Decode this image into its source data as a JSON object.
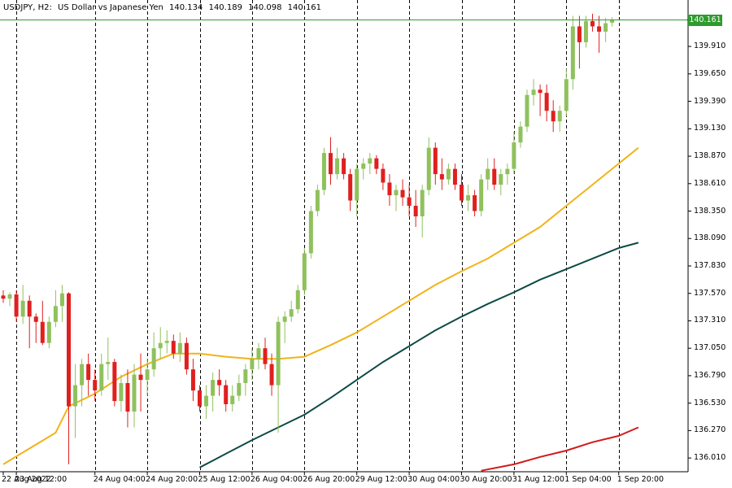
{
  "header": {
    "symbol": "USDJPY, H2:",
    "description": "US Dollar vs Japanese Yen",
    "open": "140.134",
    "high": "140.189",
    "low": "140.098",
    "close": "140.161"
  },
  "current_price_label": "140.161",
  "colors": {
    "bull": "#8fc15d",
    "bear": "#e01f1f",
    "ma_fast": "#f0b419",
    "ma_mid": "#0d4a44",
    "ma_slow": "#d11a1a",
    "price_line": "#2e9b2e",
    "grid_separator": "#000000",
    "axis": "#000000"
  },
  "chart_data": {
    "type": "candlestick",
    "symbol": "USDJPY",
    "timeframe": "H2",
    "ylim": [
      135.88,
      140.35
    ],
    "y_ticks": [
      "136.010",
      "136.270",
      "136.530",
      "136.790",
      "137.050",
      "137.310",
      "137.570",
      "137.830",
      "138.090",
      "138.350",
      "138.610",
      "138.870",
      "139.130",
      "139.390",
      "139.650",
      "139.910"
    ],
    "x_tick_labels": [
      "22 Aug 2022",
      "23 Aug 12:00",
      "24 Aug 04:00",
      "24 Aug 20:00",
      "25 Aug 12:00",
      "26 Aug 04:00",
      "26 Aug 20:00",
      "29 Aug 12:00",
      "30 Aug 04:00",
      "30 Aug 20:00",
      "31 Aug 12:00",
      "1 Sep 04:00",
      "1 Sep 20:00"
    ],
    "last_price": 140.161,
    "grid": false,
    "candles": [
      [
        137.55,
        137.6,
        137.48,
        137.52
      ],
      [
        137.52,
        137.58,
        137.45,
        137.56
      ],
      [
        137.56,
        137.6,
        137.3,
        137.35
      ],
      [
        137.35,
        137.65,
        137.28,
        137.5
      ],
      [
        137.5,
        137.55,
        137.05,
        137.35
      ],
      [
        137.35,
        137.38,
        137.1,
        137.3
      ],
      [
        137.3,
        137.5,
        137.08,
        137.1
      ],
      [
        137.1,
        137.35,
        137.05,
        137.3
      ],
      [
        137.3,
        137.6,
        137.25,
        137.45
      ],
      [
        137.45,
        137.65,
        137.3,
        137.57
      ],
      [
        137.57,
        137.58,
        135.95,
        136.5
      ],
      [
        136.5,
        136.9,
        136.2,
        136.7
      ],
      [
        136.7,
        136.95,
        136.5,
        136.9
      ],
      [
        136.9,
        137.0,
        136.6,
        136.75
      ],
      [
        136.75,
        136.85,
        136.55,
        136.65
      ],
      [
        136.65,
        137.0,
        136.6,
        136.9
      ],
      [
        136.9,
        137.15,
        136.75,
        136.92
      ],
      [
        136.92,
        136.95,
        136.5,
        136.55
      ],
      [
        136.55,
        136.8,
        136.45,
        136.72
      ],
      [
        136.72,
        136.85,
        136.3,
        136.45
      ],
      [
        136.45,
        136.9,
        136.3,
        136.8
      ],
      [
        136.8,
        137.0,
        136.45,
        136.75
      ],
      [
        136.75,
        136.95,
        136.6,
        136.85
      ],
      [
        136.85,
        137.2,
        136.78,
        137.05
      ],
      [
        137.05,
        137.25,
        136.95,
        137.1
      ],
      [
        137.1,
        137.22,
        137.0,
        137.12
      ],
      [
        137.12,
        137.18,
        136.95,
        137.0
      ],
      [
        137.0,
        137.2,
        136.92,
        137.1
      ],
      [
        137.1,
        137.15,
        136.8,
        136.85
      ],
      [
        136.85,
        136.95,
        136.55,
        136.65
      ],
      [
        136.65,
        136.7,
        136.45,
        136.5
      ],
      [
        136.5,
        136.7,
        136.38,
        136.6
      ],
      [
        136.6,
        136.82,
        136.45,
        136.75
      ],
      [
        136.75,
        136.85,
        136.6,
        136.7
      ],
      [
        136.7,
        136.75,
        136.45,
        136.52
      ],
      [
        136.52,
        136.7,
        136.45,
        136.6
      ],
      [
        136.6,
        136.8,
        136.55,
        136.72
      ],
      [
        136.72,
        136.9,
        136.6,
        136.85
      ],
      [
        136.85,
        137.05,
        136.75,
        136.95
      ],
      [
        136.95,
        137.1,
        136.85,
        137.05
      ],
      [
        137.05,
        137.15,
        136.85,
        136.9
      ],
      [
        136.9,
        137.0,
        136.6,
        136.7
      ],
      [
        136.7,
        137.35,
        136.25,
        137.3
      ],
      [
        137.3,
        137.4,
        137.1,
        137.35
      ],
      [
        137.35,
        137.5,
        137.3,
        137.42
      ],
      [
        137.42,
        137.65,
        137.38,
        137.6
      ],
      [
        137.6,
        138.0,
        137.55,
        137.95
      ],
      [
        137.95,
        138.4,
        137.9,
        138.35
      ],
      [
        138.35,
        138.6,
        138.3,
        138.55
      ],
      [
        138.55,
        138.95,
        138.5,
        138.9
      ],
      [
        138.9,
        139.05,
        138.6,
        138.7
      ],
      [
        138.7,
        138.95,
        138.65,
        138.85
      ],
      [
        138.85,
        138.9,
        138.65,
        138.7
      ],
      [
        138.7,
        138.75,
        138.35,
        138.45
      ],
      [
        138.45,
        138.8,
        138.3,
        138.75
      ],
      [
        138.75,
        138.85,
        138.65,
        138.8
      ],
      [
        138.8,
        138.9,
        138.7,
        138.85
      ],
      [
        138.85,
        138.88,
        138.7,
        138.75
      ],
      [
        138.75,
        138.8,
        138.55,
        138.62
      ],
      [
        138.62,
        138.7,
        138.4,
        138.5
      ],
      [
        138.5,
        138.6,
        138.35,
        138.55
      ],
      [
        138.55,
        138.65,
        138.4,
        138.48
      ],
      [
        138.48,
        138.6,
        138.3,
        138.4
      ],
      [
        138.4,
        138.55,
        138.2,
        138.3
      ],
      [
        138.3,
        138.6,
        138.1,
        138.55
      ],
      [
        138.55,
        139.05,
        138.5,
        138.95
      ],
      [
        138.95,
        139.0,
        138.6,
        138.7
      ],
      [
        138.7,
        138.85,
        138.55,
        138.65
      ],
      [
        138.65,
        138.8,
        138.6,
        138.75
      ],
      [
        138.75,
        138.8,
        138.55,
        138.6
      ],
      [
        138.6,
        138.7,
        138.4,
        138.45
      ],
      [
        138.45,
        138.6,
        138.35,
        138.5
      ],
      [
        138.5,
        138.55,
        138.3,
        138.35
      ],
      [
        138.35,
        138.7,
        138.3,
        138.65
      ],
      [
        138.65,
        138.85,
        138.55,
        138.75
      ],
      [
        138.75,
        138.85,
        138.55,
        138.6
      ],
      [
        138.6,
        138.75,
        138.5,
        138.7
      ],
      [
        138.7,
        138.8,
        138.6,
        138.75
      ],
      [
        138.75,
        139.1,
        138.7,
        139.0
      ],
      [
        139.0,
        139.2,
        138.95,
        139.15
      ],
      [
        139.15,
        139.5,
        139.1,
        139.45
      ],
      [
        139.45,
        139.6,
        139.35,
        139.5
      ],
      [
        139.5,
        139.55,
        139.25,
        139.47
      ],
      [
        139.47,
        139.55,
        139.2,
        139.3
      ],
      [
        139.3,
        139.4,
        139.1,
        139.2
      ],
      [
        139.2,
        139.35,
        139.1,
        139.3
      ],
      [
        139.3,
        139.7,
        139.25,
        139.6
      ],
      [
        139.6,
        140.2,
        139.5,
        140.1
      ],
      [
        140.1,
        140.2,
        139.7,
        139.95
      ],
      [
        139.95,
        140.2,
        139.9,
        140.15
      ],
      [
        140.15,
        140.22,
        140.05,
        140.1
      ],
      [
        140.1,
        140.2,
        139.85,
        140.05
      ],
      [
        140.05,
        140.18,
        139.95,
        140.13
      ],
      [
        140.134,
        140.189,
        140.098,
        140.161
      ]
    ],
    "moving_averages": [
      {
        "color": "#f0b419",
        "points": [
          [
            0,
            135.95
          ],
          [
            8,
            136.25
          ],
          [
            10,
            136.5
          ],
          [
            14,
            136.62
          ],
          [
            18,
            136.78
          ],
          [
            22,
            136.9
          ],
          [
            26,
            137.0
          ],
          [
            30,
            137.0
          ],
          [
            34,
            136.97
          ],
          [
            38,
            136.95
          ],
          [
            42,
            136.95
          ],
          [
            46,
            136.97
          ],
          [
            50,
            137.08
          ],
          [
            54,
            137.2
          ],
          [
            58,
            137.35
          ],
          [
            62,
            137.5
          ],
          [
            66,
            137.65
          ],
          [
            70,
            137.78
          ],
          [
            74,
            137.9
          ],
          [
            78,
            138.05
          ],
          [
            82,
            138.2
          ],
          [
            86,
            138.4
          ],
          [
            90,
            138.6
          ],
          [
            94,
            138.8
          ],
          [
            97,
            138.95
          ]
        ]
      },
      {
        "color": "#0d4a44",
        "points": [
          [
            30,
            135.92
          ],
          [
            34,
            136.05
          ],
          [
            38,
            136.18
          ],
          [
            42,
            136.3
          ],
          [
            46,
            136.42
          ],
          [
            50,
            136.58
          ],
          [
            54,
            136.75
          ],
          [
            58,
            136.92
          ],
          [
            62,
            137.07
          ],
          [
            66,
            137.22
          ],
          [
            70,
            137.35
          ],
          [
            74,
            137.47
          ],
          [
            78,
            137.58
          ],
          [
            82,
            137.7
          ],
          [
            86,
            137.8
          ],
          [
            90,
            137.9
          ],
          [
            94,
            138.0
          ],
          [
            97,
            138.05
          ]
        ]
      },
      {
        "color": "#d11a1a",
        "points": [
          [
            73,
            135.89
          ],
          [
            78,
            135.95
          ],
          [
            82,
            136.02
          ],
          [
            86,
            136.08
          ],
          [
            90,
            136.16
          ],
          [
            94,
            136.22
          ],
          [
            97,
            136.3
          ]
        ]
      }
    ],
    "vertical_separators": [
      2,
      14,
      22,
      30,
      38,
      46,
      54,
      62,
      70,
      78,
      86,
      94
    ]
  }
}
